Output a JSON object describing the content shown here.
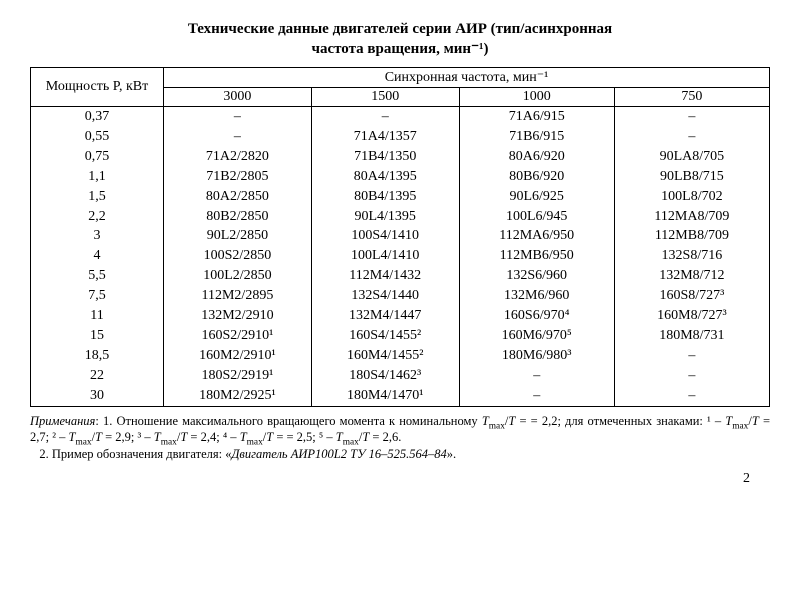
{
  "title_line1": "Технические данные двигателей серии АИР (тип/асинхронная",
  "title_line2": "частота вращения, мин⁻¹)",
  "header": {
    "power": "Мощность P, кВт",
    "freq_group": "Синхронная частота, мин⁻¹",
    "cols": [
      "3000",
      "1500",
      "1000",
      "750"
    ]
  },
  "rows": [
    {
      "p": "0,37",
      "c": [
        "–",
        "–",
        "71А6/915",
        "–"
      ]
    },
    {
      "p": "0,55",
      "c": [
        "–",
        "71А4/1357",
        "71В6/915",
        "–"
      ]
    },
    {
      "p": "0,75",
      "c": [
        "71А2/2820",
        "71В4/1350",
        "80А6/920",
        "90LA8/705"
      ]
    },
    {
      "p": "1,1",
      "c": [
        "71В2/2805",
        "80А4/1395",
        "80В6/920",
        "90LB8/715"
      ]
    },
    {
      "p": "1,5",
      "c": [
        "80А2/2850",
        "80В4/1395",
        "90L6/925",
        "100L8/702"
      ]
    },
    {
      "p": "2,2",
      "c": [
        "80В2/2850",
        "90L4/1395",
        "100L6/945",
        "112МА8/709"
      ]
    },
    {
      "p": "3",
      "c": [
        "90L2/2850",
        "100S4/1410",
        "112МА6/950",
        "112МВ8/709"
      ]
    },
    {
      "p": "4",
      "c": [
        "100S2/2850",
        "100L4/1410",
        "112МВ6/950",
        "132S8/716"
      ]
    },
    {
      "p": "5,5",
      "c": [
        "100L2/2850",
        "112М4/1432",
        "132S6/960",
        "132М8/712"
      ]
    },
    {
      "p": "7,5",
      "c": [
        "112М2/2895",
        "132S4/1440",
        "132М6/960",
        "160S8/727³"
      ]
    },
    {
      "p": "11",
      "c": [
        "132М2/2910",
        "132М4/1447",
        "160S6/970⁴",
        "160М8/727³"
      ]
    },
    {
      "p": "15",
      "c": [
        "160S2/2910¹",
        "160S4/1455²",
        "160М6/970⁵",
        "180М8/731"
      ]
    },
    {
      "p": "18,5",
      "c": [
        "160М2/2910¹",
        "160М4/1455²",
        "180М6/980³",
        "–"
      ]
    },
    {
      "p": "22",
      "c": [
        "180S2/2919¹",
        "180S4/1462³",
        "–",
        "–"
      ]
    },
    {
      "p": "30",
      "c": [
        "180М2/2925¹",
        "180М4/1470¹",
        "–",
        "–"
      ]
    }
  ],
  "notes": {
    "label": "Примечания",
    "n1a": ": 1. Отношение максимального вращающего момента к номинальному ",
    "tmax": "T",
    "ratio": " = 2,2; для отмеченных знаками: ",
    "s1": "¹ – Tₘₐₓ/T = 2,7; ",
    "s2": "² – Tₘₐₓ/T = 2,9; ",
    "s3": "³ – Tₘₐₓ/T = 2,4; ",
    "s4": "⁴ – Tₘₐₓ/T = 2,5; ",
    "s5": "⁵ – Tₘₐₓ/T = 2,6.",
    "n2a": "2. Пример обозначения двигателя: «",
    "n2b": "Двигатель АИР100L2 ТУ 16–525.564–84",
    "n2c": "»."
  },
  "page": "2"
}
